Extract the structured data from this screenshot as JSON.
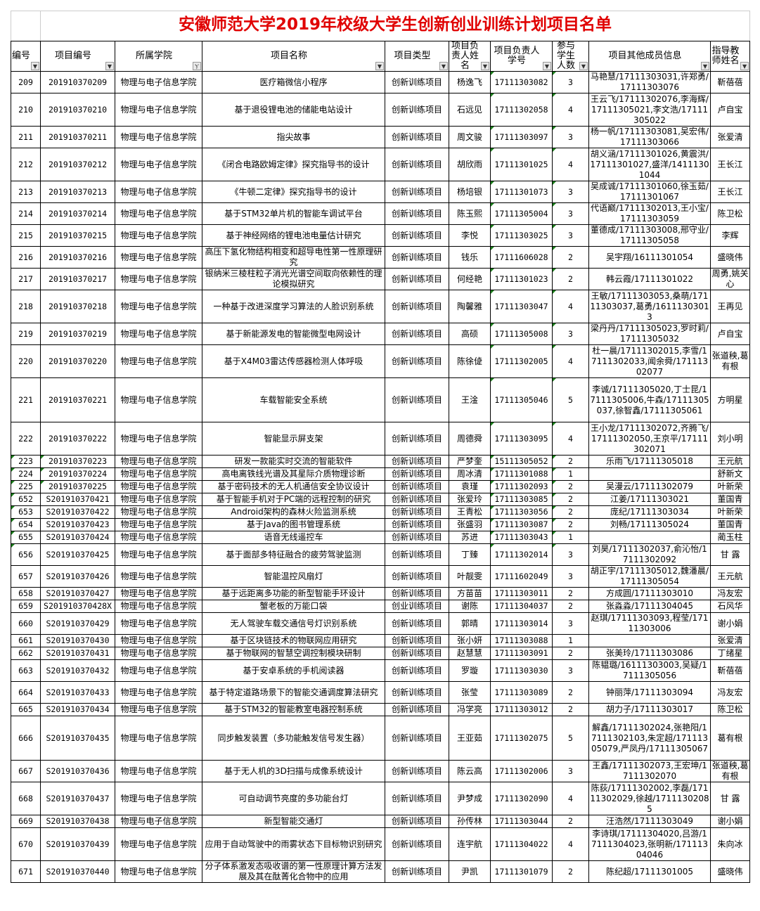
{
  "title": "安徽师范大学2019年校级大学生创新创业训练计划项目名单",
  "columns": [
    "编号",
    "项目编号",
    "所属学院",
    "项目名称",
    "项目类型",
    "项目负责人姓名",
    "项目负责人学号",
    "参与学生人数",
    "项目其他成员信息",
    "指导教师姓名"
  ],
  "filter_icon": "dropdown-arrow",
  "active_filter_column": "所属学院",
  "title_color": "#e00000",
  "rows": [
    [
      "209",
      "201910370209",
      "物理与电子信息学院",
      "医疗箱微信小程序",
      "创新训练项目",
      "杨逸飞",
      "17111303082",
      "3",
      "马艳慧/17111303031,许郑勇/17111303076",
      "靳蓓蓓"
    ],
    [
      "210",
      "201910370210",
      "物理与电子信息学院",
      "基于退役锂电池的储能电站设计",
      "创新训练项目",
      "石远见",
      "17111302058",
      "4",
      "王云飞/17111302076,李海辉/17111305021,李文浩/17111305022",
      "卢自宝"
    ],
    [
      "211",
      "201910370211",
      "物理与电子信息学院",
      "指尖故事",
      "创新训练项目",
      "周文骏",
      "17111303097",
      "3",
      "杨一帆/17111303081,吴宏伟/17111303066",
      "张爱清"
    ],
    [
      "212",
      "201910370212",
      "物理与电子信息学院",
      "《闭合电路欧姆定律》探究指导书的设计",
      "创新训练项目",
      "胡欣雨",
      "17111301025",
      "4",
      "胡义涵/17111301026,黄震洪/17111301027,盛洋/14111301044",
      "王长江"
    ],
    [
      "213",
      "201910370213",
      "物理与电子信息学院",
      "《牛顿二定律》探究指导书的设计",
      "创新训练项目",
      "杨培银",
      "17111301073",
      "3",
      "吴成诚/17111301060,徐玉茹/17111301067",
      "王长江"
    ],
    [
      "214",
      "201910370214",
      "物理与电子信息学院",
      "基于STM32单片机的智能车调试平台",
      "创新训练项目",
      "陈玉熙",
      "17111305004",
      "3",
      "代语巅/17111302013,王小宝/17111303059",
      "陈卫松"
    ],
    [
      "215",
      "201910370215",
      "物理与电子信息学院",
      "基于神经网络的锂电池电量估计研究",
      "创新训练项目",
      "李悦",
      "17111303025",
      "3",
      "董德成/17111303008,邢守业/17111305058",
      "李辉"
    ],
    [
      "216",
      "201910370216",
      "物理与电子信息学院",
      "高压下氢化物结构相变和超导电性第一性原理研究",
      "创新训练项目",
      "钱乐",
      "17111606028",
      "2",
      "吴宇翔/16111301054",
      "盛晓伟"
    ],
    [
      "217",
      "201910370217",
      "物理与电子信息学院",
      "银纳米三棱柱粒子消光光谱空间取向依赖性的理论模拟研究",
      "创新训练项目",
      "何经艳",
      "17111301023",
      "2",
      "韩云霞/17111301022",
      "周勇,姚关心"
    ],
    [
      "218",
      "201910370218",
      "物理与电子信息学院",
      "一种基于改进深度学习算法的人脸识别系统",
      "创新训练项目",
      "陶馨雅",
      "17111303047",
      "4",
      "王敏/17111303053,桑萌/17111303037,葛勇/16111303013",
      "王再见"
    ],
    [
      "219",
      "201910370219",
      "物理与电子信息学院",
      "基于新能源发电的智能微型电网设计",
      "创新训练项目",
      "高硕",
      "17111305008",
      "3",
      "梁丹丹/17111305023,罗时莉/17111305032",
      "卢自宝"
    ],
    [
      "220",
      "201910370220",
      "物理与电子信息学院",
      "基于X4M03雷达传感器检测人体呼吸",
      "创新训练项目",
      "陈徐偼",
      "17111302005",
      "4",
      "杜一晨/17111302015,李雪/17111302033,闻余舜/17111302077",
      "张道秧,葛有根"
    ],
    [
      "221",
      "201910370221",
      "物理与电子信息学院",
      "车载智能安全系统",
      "创新训练项目",
      "王淦",
      "17111305046",
      "5",
      "李诚/17111305020,丁士昆/17111305006,牛森/17111305037,徐智鑫/17111305061",
      "方明星"
    ],
    [
      "222",
      "201910370222",
      "物理与电子信息学院",
      "智能显示屏支架",
      "创新训练项目",
      "周德舜",
      "17111303095",
      "4",
      "王小龙/17111302072,齐腾飞/17111302050,王京平/17111302071",
      "刘小明"
    ],
    [
      "223",
      "201910370223",
      "物理与电子信息学院",
      "研发一款能实时交流的智能软件",
      "创新训练项目",
      "严梦奎",
      "15111305052",
      "2",
      "乐雨飞/17111305018",
      "王元航"
    ],
    [
      "224",
      "201910370224",
      "物理与电子信息学院",
      "高电离铁线光谱及其星际介质物理诊断",
      "创新训练项目",
      "周冰清",
      "17111301088",
      "1",
      "",
      "舒新文"
    ],
    [
      "225",
      "201910370225",
      "物理与电子信息学院",
      "基于密码技术的无人机通信安全协议设计",
      "创新训练项目",
      "袁瑾",
      "17111302093",
      "2",
      "吴漫云/17111302079",
      "叶新荣"
    ],
    [
      "652",
      "S201910370421",
      "物理与电子信息学院",
      "基于智能手机对于PC端的远程控制的研究",
      "创新训练项目",
      "张爱玲",
      "17111303085",
      "2",
      "江姜/17111303021",
      "董国青"
    ],
    [
      "653",
      "S201910370422",
      "物理与电子信息学院",
      "Android架构的森林火险监测系统",
      "创新训练项目",
      "王青松",
      "17111303056",
      "2",
      "庞纪/17111303034",
      "叶新荣"
    ],
    [
      "654",
      "S201910370423",
      "物理与电子信息学院",
      "基于Java的图书管理系统",
      "创新训练项目",
      "张盛羽",
      "17111303087",
      "2",
      "刘畅/17111305024",
      "董国青"
    ],
    [
      "655",
      "S201910370424",
      "物理与电子信息学院",
      "语音无线遥控车",
      "创新训练项目",
      "苏进",
      "17111303043",
      "1",
      "",
      "蔺玉柱"
    ],
    [
      "656",
      "S201910370425",
      "物理与电子信息学院",
      "基于面部多特征融合的疲劳驾驶监测",
      "创新训练项目",
      "丁臻",
      "17111302014",
      "3",
      "刘昊/17111302037,俞沁怡/17111302092",
      "甘 露"
    ],
    [
      "657",
      "S201910370426",
      "物理与电子信息学院",
      "智能温控风扇灯",
      "创新训练项目",
      "叶靓雯",
      "17111602049",
      "3",
      "胡正宇/17111305012,魏潘晨/17111305054",
      "王元航"
    ],
    [
      "658",
      "S201910370427",
      "物理与电子信息学院",
      "基于远距离多功能的新型智能手环设计",
      "创新训练项目",
      "方苗苗",
      "17111303011",
      "2",
      "方成圆/17111303010",
      "冯友宏"
    ],
    [
      "659",
      "S201910370428X",
      "物理与电子信息学院",
      "蟹老板的万能口袋",
      "创业训练项目",
      "谢陈",
      "17111304037",
      "2",
      "张淼淼/17111304045",
      "石风华"
    ],
    [
      "660",
      "S201910370429",
      "物理与电子信息学院",
      "无人驾驶车载交通信号灯识别系统",
      "创新训练项目",
      "郭晴",
      "17111303014",
      "3",
      "赵琪/17111303093,程莹/17111303006",
      "谢小娟"
    ],
    [
      "661",
      "S201910370430",
      "物理与电子信息学院",
      "基于区块链技术的物联网应用研究",
      "创新训练项目",
      "张小妍",
      "17111303088",
      "1",
      "",
      "张爱清"
    ],
    [
      "662",
      "S201910370431",
      "物理与电子信息学院",
      "基于物联网的智慧空调控制模块研制",
      "创新训练项目",
      "赵慧慧",
      "17111303091",
      "2",
      "张美玲/17111303086",
      "丁绪星"
    ],
    [
      "663",
      "S201910370432",
      "物理与电子信息学院",
      "基于安卓系统的手机阅读器",
      "创新训练项目",
      "罗璇",
      "17111303030",
      "3",
      "陈韫璐/16111303003,吴疑/17111305056",
      "靳蓓蓓"
    ],
    [
      "664",
      "S201910370433",
      "物理与电子信息学院",
      "基于特定道路场景下的智能交通调度算法研究",
      "创新训练项目",
      "张莹",
      "17111303089",
      "2",
      "钟丽萍/17111303094",
      "冯友宏"
    ],
    [
      "665",
      "S201910370434",
      "物理与电子信息学院",
      "基于STM32的智能教室电器控制系统",
      "创新训练项目",
      "冯学亮",
      "17111303012",
      "2",
      "胡力子/17111303017",
      "陈卫松"
    ],
    [
      "666",
      "S201910370435",
      "物理与电子信息学院",
      "同步触发装置（多功能触发信号发生器）",
      "创新训练项目",
      "王亚茹",
      "17111302075",
      "5",
      "解鑫/17111302024,张艳阳/17111302103,朱定超/17111305079,严凤丹/17111305067",
      "葛有根"
    ],
    [
      "667",
      "S201910370436",
      "物理与电子信息学院",
      "基于无人机的3D扫描与成像系统设计",
      "创新训练项目",
      "陈云高",
      "17111302006",
      "3",
      "王鑫/17111302073,王宏坤/17111302070",
      "张道秧,葛有根"
    ],
    [
      "668",
      "S201910370437",
      "物理与电子信息学院",
      "可自动调节亮度的多功能台灯",
      "创新训练项目",
      "尹梦成",
      "17111302090",
      "4",
      "陈荻/17111302002,李磊/17111302029,徐越/17111302085",
      "甘 露"
    ],
    [
      "669",
      "S201910370438",
      "物理与电子信息学院",
      "新型智能交通灯",
      "创新训练项目",
      "孙传林",
      "17111303044",
      "2",
      "汪浩然/17111303049",
      "谢小娟"
    ],
    [
      "670",
      "S201910370439",
      "物理与电子信息学院",
      "应用于自动驾驶中的雨雾状态下目标物识别研究",
      "创新训练项目",
      "连宇航",
      "17111304022",
      "4",
      "李诗琪/17111304020,吕游/17111304023,张明新/17111304046",
      "朱向冰"
    ],
    [
      "671",
      "S201910370440",
      "物理与电子信息学院",
      "分子体系激发态吸收谱的第一性原理计算方法发展及其在酞菁化合物中的应用",
      "创新训练项目",
      "尹凯",
      "17111301079",
      "2",
      "陈纪超/17111301005",
      "盛晓伟"
    ]
  ]
}
